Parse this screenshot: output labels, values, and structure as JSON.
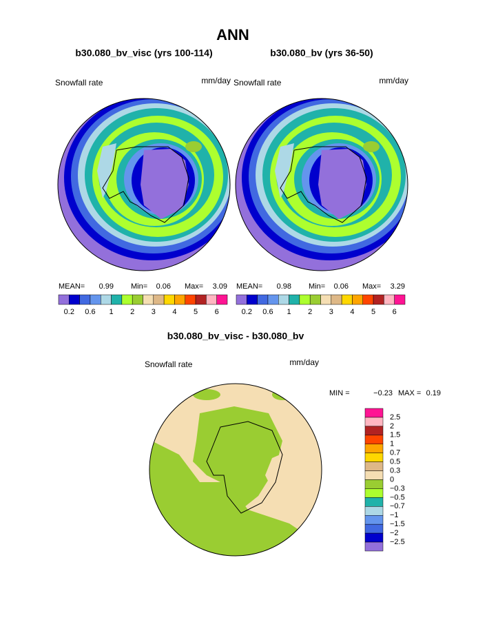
{
  "title": "ANN",
  "panels": [
    {
      "title": "b30.080_bv_visc (yrs 100-114)",
      "variable": "Snowfall rate",
      "units": "mm/day",
      "stats": [
        "MEAN=",
        "0.99",
        "Min=",
        "0.06",
        "Max=",
        "3.09"
      ]
    },
    {
      "title": "b30.080_bv (yrs 36-50)",
      "variable": "Snowfall rate",
      "units": "mm/day",
      "stats": [
        "MEAN=",
        "0.98",
        "Min=",
        "0.06",
        "Max=",
        "3.29"
      ]
    }
  ],
  "colorbar": {
    "labels": [
      "0.2",
      "0.6",
      "1",
      "2",
      "3",
      "4",
      "5",
      "6"
    ],
    "colors": [
      "#9370db",
      "#0000cd",
      "#4169e1",
      "#6495ed",
      "#add8e6",
      "#20b2aa",
      "#adff2f",
      "#9acd32",
      "#f5deb3",
      "#deb887",
      "#ffd700",
      "#ffa500",
      "#ff4500",
      "#b22222",
      "#ffb6c1",
      "#ff1493"
    ]
  },
  "difference": {
    "title": "b30.080_bv_visc - b30.080_bv",
    "variable": "Snowfall rate",
    "units": "mm/day",
    "stats": [
      "MIN =",
      "−0.23",
      "MAX =",
      "0.19"
    ],
    "colorbar": {
      "labels": [
        "2.5",
        "2",
        "1.5",
        "1",
        "0.7",
        "0.5",
        "0.3",
        "0",
        "−0.3",
        "−0.5",
        "−0.7",
        "−1",
        "−1.5",
        "−2",
        "−2.5"
      ],
      "colors": [
        "#ff1493",
        "#ffb6c1",
        "#b22222",
        "#ff4500",
        "#ffa500",
        "#ffd700",
        "#deb887",
        "#f5deb3",
        "#9acd32",
        "#adff2f",
        "#20b2aa",
        "#add8e6",
        "#6495ed",
        "#4169e1",
        "#0000cd",
        "#9370db"
      ]
    }
  }
}
